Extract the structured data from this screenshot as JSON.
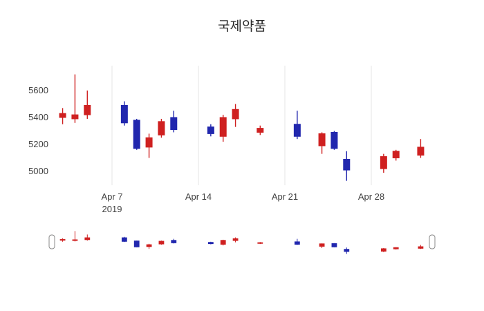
{
  "chart_data": {
    "type": "candlestick",
    "title": "국제약품",
    "x": [
      "2019-04-03",
      "2019-04-04",
      "2019-04-05",
      "2019-04-08",
      "2019-04-09",
      "2019-04-10",
      "2019-04-11",
      "2019-04-12",
      "2019-04-15",
      "2019-04-16",
      "2019-04-17",
      "2019-04-19",
      "2019-04-22",
      "2019-04-24",
      "2019-04-25",
      "2019-04-26",
      "2019-04-29",
      "2019-04-30",
      "2019-05-02"
    ],
    "open": [
      5400,
      5390,
      5420,
      5490,
      5380,
      5180,
      5270,
      5400,
      5330,
      5260,
      5390,
      5290,
      5350,
      5190,
      5290,
      5090,
      5020,
      5100,
      5120
    ],
    "high": [
      5470,
      5720,
      5600,
      5520,
      5390,
      5280,
      5390,
      5450,
      5350,
      5420,
      5500,
      5340,
      5450,
      5290,
      5300,
      5150,
      5130,
      5160,
      5240
    ],
    "low": [
      5350,
      5360,
      5390,
      5340,
      5160,
      5100,
      5250,
      5290,
      5260,
      5220,
      5330,
      5270,
      5240,
      5130,
      5160,
      4930,
      4990,
      5080,
      5100
    ],
    "close": [
      5430,
      5420,
      5490,
      5360,
      5170,
      5250,
      5370,
      5310,
      5280,
      5400,
      5460,
      5320,
      5260,
      5280,
      5170,
      5010,
      5110,
      5150,
      5180
    ],
    "increasing_color": "#cf2020",
    "decreasing_color": "#2127ae",
    "grid_color": "#e4e4e4",
    "text_color": "#3f3f3f",
    "yticks": [
      5000,
      5200,
      5400,
      5600
    ],
    "ylim": [
      4890,
      5800
    ],
    "xticks": [
      {
        "date": "2019-04-07",
        "label": "Apr 7",
        "sublabel": "2019"
      },
      {
        "date": "2019-04-14",
        "label": "Apr 14",
        "sublabel": ""
      },
      {
        "date": "2019-04-21",
        "label": "Apr 21",
        "sublabel": ""
      },
      {
        "date": "2019-04-28",
        "label": "Apr 28",
        "sublabel": ""
      }
    ],
    "grid": "vertical-only",
    "legend_position": "none",
    "rangeslider": true
  }
}
